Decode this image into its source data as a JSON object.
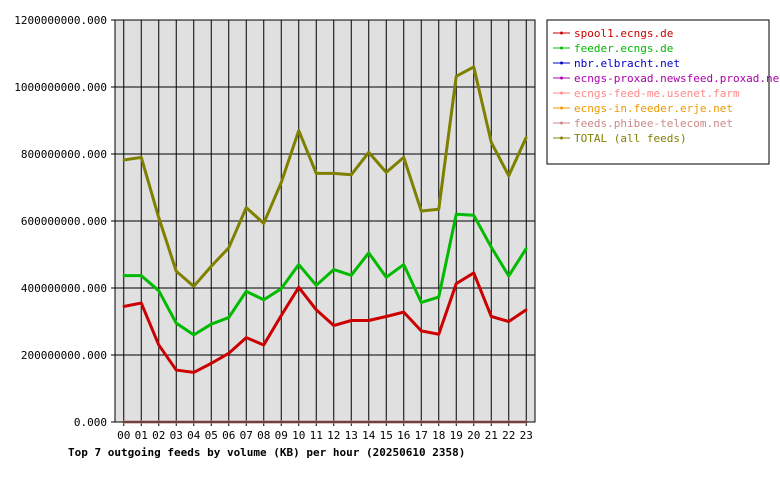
{
  "chart_data": {
    "type": "line",
    "title": "Top 7 outgoing feeds by volume (KB) per hour (20250610 2358)",
    "xlabel": "",
    "ylabel": "",
    "categories": [
      "00",
      "01",
      "02",
      "03",
      "04",
      "05",
      "06",
      "07",
      "08",
      "09",
      "10",
      "11",
      "12",
      "13",
      "14",
      "15",
      "16",
      "17",
      "18",
      "19",
      "20",
      "21",
      "22",
      "23"
    ],
    "ylim": [
      0,
      1200000000
    ],
    "yticks": [
      0,
      200000000,
      400000000,
      600000000,
      800000000,
      1000000000,
      1200000000
    ],
    "ytick_labels": [
      "0.000",
      "200000000.000",
      "400000000.000",
      "600000000.000",
      "800000000.000",
      "1000000000.000",
      "1200000000.000"
    ],
    "grid": true,
    "legend_position": "right",
    "series": [
      {
        "name": "spool1.ecngs.de",
        "color": "#cc0000",
        "values": [
          345000000,
          355000000,
          230000000,
          155000000,
          148000000,
          175000000,
          205000000,
          252000000,
          230000000,
          318000000,
          402000000,
          335000000,
          288000000,
          303000000,
          303000000,
          315000000,
          328000000,
          272000000,
          262000000,
          413000000,
          445000000,
          315000000,
          300000000,
          335000000
        ]
      },
      {
        "name": "feeder.ecngs.de",
        "color": "#00bb00",
        "values": [
          437000000,
          437000000,
          392000000,
          295000000,
          260000000,
          292000000,
          312000000,
          390000000,
          365000000,
          398000000,
          470000000,
          408000000,
          455000000,
          438000000,
          505000000,
          432000000,
          470000000,
          357000000,
          373000000,
          620000000,
          617000000,
          522000000,
          436000000,
          518000000
        ]
      },
      {
        "name": "nbr.elbracht.net",
        "color": "#0000cc",
        "values": [
          0,
          0,
          0,
          0,
          0,
          0,
          0,
          0,
          0,
          0,
          0,
          0,
          0,
          0,
          0,
          0,
          0,
          0,
          0,
          0,
          0,
          0,
          0,
          0
        ]
      },
      {
        "name": "ecngs-proxad.newsfeed.proxad.net",
        "color": "#aa00aa",
        "values": [
          0,
          0,
          0,
          0,
          0,
          0,
          0,
          0,
          0,
          0,
          0,
          0,
          0,
          0,
          0,
          0,
          0,
          0,
          0,
          0,
          0,
          0,
          0,
          0
        ]
      },
      {
        "name": "ecngs-feed-me.usenet.farm",
        "color": "#ff8888",
        "values": [
          0,
          0,
          0,
          0,
          0,
          0,
          0,
          0,
          0,
          0,
          0,
          0,
          0,
          0,
          0,
          0,
          0,
          0,
          0,
          0,
          0,
          0,
          0,
          0
        ]
      },
      {
        "name": "ecngs-in.feeder.erje.net",
        "color": "#ee9900",
        "values": [
          0,
          0,
          0,
          0,
          0,
          0,
          0,
          0,
          0,
          0,
          0,
          0,
          0,
          0,
          0,
          0,
          0,
          0,
          0,
          0,
          0,
          0,
          0,
          0
        ]
      },
      {
        "name": "feeds.phibee-telecom.net",
        "color": "#cc8888",
        "values": [
          0,
          0,
          0,
          0,
          0,
          0,
          0,
          0,
          0,
          0,
          0,
          0,
          0,
          0,
          0,
          0,
          0,
          0,
          0,
          0,
          0,
          0,
          0,
          0
        ]
      },
      {
        "name": "TOTAL (all feeds)",
        "color": "#808000",
        "values": [
          782000000,
          790000000,
          610000000,
          450000000,
          405000000,
          465000000,
          520000000,
          640000000,
          593000000,
          715000000,
          870000000,
          742000000,
          742000000,
          738000000,
          805000000,
          745000000,
          790000000,
          630000000,
          635000000,
          1032000000,
          1060000000,
          835000000,
          735000000,
          850000000
        ]
      }
    ]
  }
}
